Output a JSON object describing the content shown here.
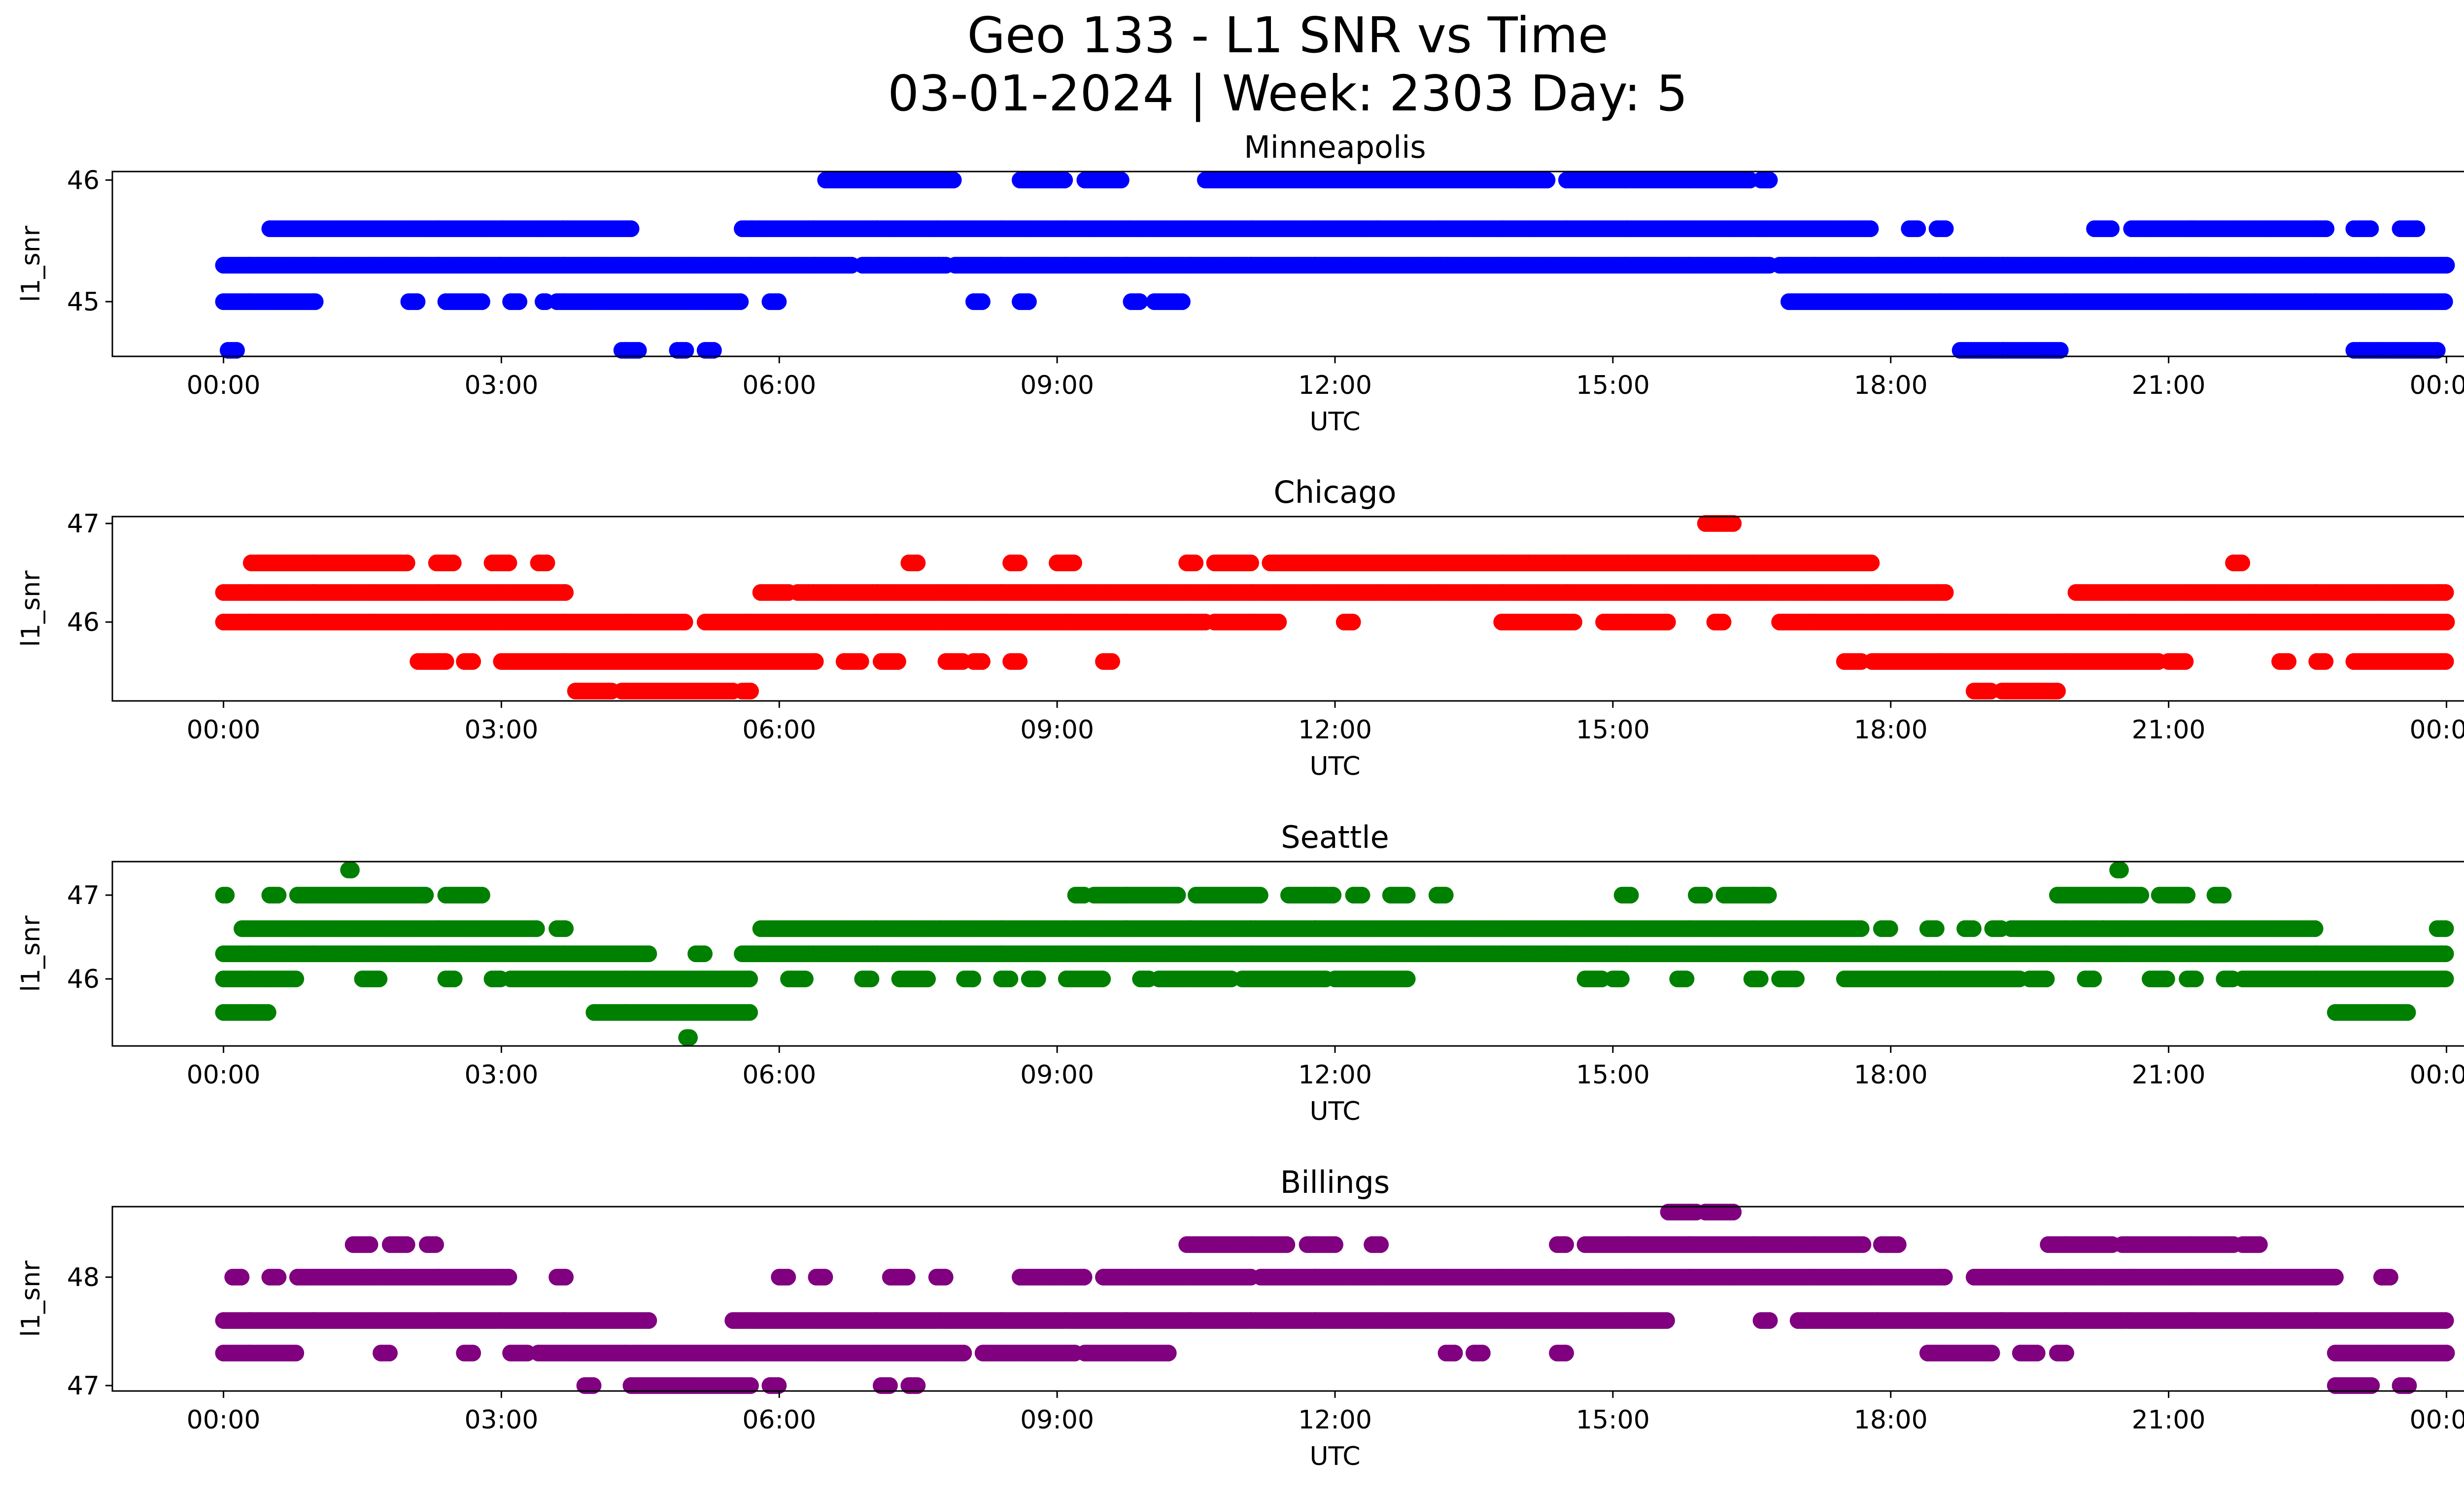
{
  "figure": {
    "title_line1": "Geo 133 - L1 SNR vs Time",
    "title_line2": "03-01-2024 | Week: 2303 Day: 5"
  },
  "chart_data": [
    {
      "type": "scatter",
      "title": "Minneapolis",
      "xlabel": "UTC",
      "ylabel": "l1_snr",
      "color": "#0000ff",
      "xticks": [
        "00:00",
        "03:00",
        "06:00",
        "09:00",
        "12:00",
        "15:00",
        "18:00",
        "21:00",
        "00:00"
      ],
      "xlim_hours": [
        -1.2,
        25.2
      ],
      "yticks": [
        45,
        46
      ],
      "ylim": [
        44.55,
        46.07
      ],
      "levels": [
        {
          "y": 44.6,
          "segments": [
            [
              0.05,
              0.15
            ],
            [
              4.3,
              4.5
            ],
            [
              4.9,
              5.0
            ],
            [
              5.2,
              5.3
            ],
            [
              18.75,
              19.85
            ],
            [
              23.0,
              23.9
            ]
          ]
        },
        {
          "y": 45.0,
          "segments": [
            [
              0.0,
              1.0
            ],
            [
              2.0,
              2.1
            ],
            [
              2.4,
              2.8
            ],
            [
              3.1,
              3.2
            ],
            [
              3.45,
              3.5
            ],
            [
              3.6,
              5.6
            ],
            [
              5.9,
              6.0
            ],
            [
              8.1,
              8.2
            ],
            [
              8.6,
              8.7
            ],
            [
              9.8,
              9.9
            ],
            [
              10.05,
              10.35
            ],
            [
              16.9,
              24.0
            ]
          ]
        },
        {
          "y": 45.3,
          "segments": [
            [
              0.0,
              6.8
            ],
            [
              6.9,
              7.8
            ],
            [
              7.9,
              16.7
            ],
            [
              16.8,
              24.0
            ]
          ]
        },
        {
          "y": 45.6,
          "segments": [
            [
              0.5,
              4.4
            ],
            [
              5.6,
              17.8
            ],
            [
              18.2,
              18.3
            ],
            [
              18.5,
              18.6
            ],
            [
              20.2,
              20.4
            ],
            [
              20.6,
              22.7
            ],
            [
              23.0,
              23.2
            ],
            [
              23.5,
              23.7
            ]
          ]
        },
        {
          "y": 46.0,
          "segments": [
            [
              6.5,
              7.9
            ],
            [
              8.6,
              9.1
            ],
            [
              9.3,
              9.7
            ],
            [
              10.6,
              14.3
            ],
            [
              14.5,
              16.5
            ],
            [
              16.6,
              16.7
            ]
          ]
        }
      ]
    },
    {
      "type": "scatter",
      "title": "Chicago",
      "xlabel": "UTC",
      "ylabel": "l1_snr",
      "color": "#ff0000",
      "xticks": [
        "00:00",
        "03:00",
        "06:00",
        "09:00",
        "12:00",
        "15:00",
        "18:00",
        "21:00",
        "00:00"
      ],
      "xlim_hours": [
        -1.2,
        25.2
      ],
      "yticks": [
        46,
        47
      ],
      "ylim": [
        45.2,
        47.07
      ],
      "levels": [
        {
          "y": 45.3,
          "segments": [
            [
              3.8,
              4.2
            ],
            [
              4.3,
              5.5
            ],
            [
              5.6,
              5.7
            ],
            [
              18.9,
              19.1
            ],
            [
              19.2,
              19.8
            ]
          ]
        },
        {
          "y": 45.6,
          "segments": [
            [
              2.1,
              2.4
            ],
            [
              2.6,
              2.7
            ],
            [
              3.0,
              6.4
            ],
            [
              6.7,
              6.9
            ],
            [
              7.1,
              7.3
            ],
            [
              7.8,
              8.0
            ],
            [
              8.1,
              8.2
            ],
            [
              8.5,
              8.6
            ],
            [
              9.5,
              9.6
            ],
            [
              17.5,
              17.7
            ],
            [
              17.8,
              20.9
            ],
            [
              21.0,
              21.2
            ],
            [
              22.2,
              22.3
            ],
            [
              22.6,
              22.7
            ],
            [
              23.0,
              24.0
            ]
          ]
        },
        {
          "y": 46.0,
          "segments": [
            [
              0.0,
              5.0
            ],
            [
              5.2,
              10.6
            ],
            [
              10.7,
              11.4
            ],
            [
              12.1,
              12.2
            ],
            [
              13.8,
              14.6
            ],
            [
              14.9,
              15.6
            ],
            [
              16.1,
              16.2
            ],
            [
              16.8,
              24.0
            ]
          ]
        },
        {
          "y": 46.3,
          "segments": [
            [
              0.0,
              3.7
            ],
            [
              5.8,
              6.1
            ],
            [
              6.2,
              18.6
            ],
            [
              20.0,
              23.9
            ],
            [
              23.9,
              24.0
            ]
          ]
        },
        {
          "y": 46.6,
          "segments": [
            [
              0.3,
              2.0
            ],
            [
              2.3,
              2.5
            ],
            [
              2.9,
              3.1
            ],
            [
              3.4,
              3.5
            ],
            [
              7.4,
              7.5
            ],
            [
              8.5,
              8.6
            ],
            [
              9.0,
              9.2
            ],
            [
              10.4,
              10.5
            ],
            [
              10.7,
              11.1
            ],
            [
              11.3,
              14.1
            ],
            [
              14.1,
              17.8
            ],
            [
              21.7,
              21.8
            ]
          ]
        },
        {
          "y": 47.0,
          "segments": [
            [
              16.0,
              16.3
            ]
          ]
        }
      ]
    },
    {
      "type": "scatter",
      "title": "Seattle",
      "xlabel": "UTC",
      "ylabel": "l1_snr",
      "color": "#008000",
      "xticks": [
        "00:00",
        "03:00",
        "06:00",
        "09:00",
        "12:00",
        "15:00",
        "18:00",
        "21:00",
        "00:00"
      ],
      "xlim_hours": [
        -1.2,
        25.2
      ],
      "yticks": [
        46,
        47
      ],
      "ylim": [
        45.2,
        47.4
      ],
      "levels": [
        {
          "y": 45.3,
          "segments": [
            [
              5.0,
              5.05
            ]
          ]
        },
        {
          "y": 45.6,
          "segments": [
            [
              0.0,
              0.5
            ],
            [
              4.0,
              5.7
            ],
            [
              22.8,
              23.6
            ]
          ]
        },
        {
          "y": 46.0,
          "segments": [
            [
              0.0,
              0.8
            ],
            [
              1.5,
              1.7
            ],
            [
              2.4,
              2.5
            ],
            [
              2.9,
              3.0
            ],
            [
              3.1,
              5.7
            ],
            [
              6.1,
              6.3
            ],
            [
              6.9,
              7.0
            ],
            [
              7.3,
              7.6
            ],
            [
              8.0,
              8.1
            ],
            [
              8.4,
              8.5
            ],
            [
              8.7,
              8.8
            ],
            [
              9.1,
              9.5
            ],
            [
              9.9,
              10.0
            ],
            [
              10.1,
              10.9
            ],
            [
              11.0,
              11.9
            ],
            [
              12.0,
              12.8
            ],
            [
              14.7,
              14.9
            ],
            [
              15.0,
              15.1
            ],
            [
              15.7,
              15.8
            ],
            [
              16.5,
              16.6
            ],
            [
              16.8,
              17.0
            ],
            [
              17.5,
              19.4
            ],
            [
              19.5,
              19.7
            ],
            [
              20.1,
              20.2
            ],
            [
              20.8,
              21.0
            ],
            [
              21.2,
              21.3
            ],
            [
              21.6,
              21.7
            ],
            [
              21.8,
              24.0
            ]
          ]
        },
        {
          "y": 46.3,
          "segments": [
            [
              0.0,
              4.6
            ],
            [
              5.1,
              5.2
            ],
            [
              5.6,
              24.0
            ]
          ]
        },
        {
          "y": 46.6,
          "segments": [
            [
              0.2,
              3.4
            ],
            [
              3.6,
              3.7
            ],
            [
              5.8,
              17.7
            ],
            [
              17.9,
              18.0
            ],
            [
              18.4,
              18.5
            ],
            [
              18.8,
              18.9
            ],
            [
              19.1,
              19.2
            ],
            [
              19.3,
              20.3
            ],
            [
              20.3,
              22.6
            ],
            [
              23.9,
              24.0
            ]
          ]
        },
        {
          "y": 47.0,
          "segments": [
            [
              0.0,
              0.05
            ],
            [
              0.5,
              0.6
            ],
            [
              0.8,
              2.2
            ],
            [
              2.4,
              2.8
            ],
            [
              9.2,
              9.3
            ],
            [
              9.4,
              10.3
            ],
            [
              10.5,
              11.2
            ],
            [
              11.5,
              12.0
            ],
            [
              12.2,
              12.3
            ],
            [
              12.6,
              12.8
            ],
            [
              13.1,
              13.2
            ],
            [
              15.1,
              15.2
            ],
            [
              15.9,
              16.0
            ],
            [
              16.2,
              16.7
            ],
            [
              19.8,
              20.7
            ],
            [
              20.9,
              21.2
            ],
            [
              21.5,
              21.6
            ]
          ]
        },
        {
          "y": 47.3,
          "segments": [
            [
              1.35,
              1.4
            ],
            [
              20.45,
              20.5
            ]
          ]
        }
      ]
    },
    {
      "type": "scatter",
      "title": "Billings",
      "xlabel": "UTC",
      "ylabel": "l1_snr",
      "color": "#800080",
      "xticks": [
        "00:00",
        "03:00",
        "06:00",
        "09:00",
        "12:00",
        "15:00",
        "18:00",
        "21:00",
        "00:00"
      ],
      "xlim_hours": [
        -1.2,
        25.2
      ],
      "yticks": [
        47,
        48
      ],
      "ylim": [
        46.95,
        48.65
      ],
      "levels": [
        {
          "y": 47.0,
          "segments": [
            [
              3.9,
              4.0
            ],
            [
              4.4,
              5.7
            ],
            [
              5.9,
              6.0
            ],
            [
              7.1,
              7.2
            ],
            [
              7.4,
              7.5
            ],
            [
              22.8,
              23.2
            ],
            [
              23.5,
              23.6
            ]
          ]
        },
        {
          "y": 47.3,
          "segments": [
            [
              0.0,
              0.8
            ],
            [
              1.7,
              1.8
            ],
            [
              2.6,
              2.7
            ],
            [
              3.1,
              3.3
            ],
            [
              3.4,
              8.0
            ],
            [
              8.2,
              9.2
            ],
            [
              9.3,
              10.2
            ],
            [
              13.2,
              13.3
            ],
            [
              13.5,
              13.6
            ],
            [
              14.4,
              14.5
            ],
            [
              18.4,
              19.1
            ],
            [
              19.4,
              19.6
            ],
            [
              19.8,
              19.9
            ],
            [
              22.8,
              24.0
            ]
          ]
        },
        {
          "y": 47.6,
          "segments": [
            [
              0.0,
              4.6
            ],
            [
              5.5,
              15.6
            ],
            [
              16.6,
              16.7
            ],
            [
              17.0,
              24.0
            ]
          ]
        },
        {
          "y": 48.0,
          "segments": [
            [
              0.1,
              0.2
            ],
            [
              0.5,
              0.6
            ],
            [
              0.8,
              3.1
            ],
            [
              3.6,
              3.7
            ],
            [
              6.0,
              6.1
            ],
            [
              6.4,
              6.5
            ],
            [
              7.2,
              7.4
            ],
            [
              7.7,
              7.8
            ],
            [
              8.6,
              9.3
            ],
            [
              9.5,
              11.1
            ],
            [
              11.2,
              18.6
            ],
            [
              18.9,
              22.8
            ],
            [
              23.3,
              23.4
            ]
          ]
        },
        {
          "y": 48.3,
          "segments": [
            [
              1.4,
              1.6
            ],
            [
              1.8,
              2.0
            ],
            [
              2.2,
              2.3
            ],
            [
              10.4,
              11.5
            ],
            [
              11.7,
              12.0
            ],
            [
              12.4,
              12.5
            ],
            [
              14.4,
              14.5
            ],
            [
              14.7,
              17.7
            ],
            [
              17.9,
              18.1
            ],
            [
              19.7,
              20.4
            ],
            [
              20.5,
              21.7
            ],
            [
              21.8,
              22.0
            ]
          ]
        },
        {
          "y": 48.6,
          "segments": [
            [
              15.6,
              15.9
            ],
            [
              16.0,
              16.3
            ]
          ]
        }
      ]
    }
  ]
}
